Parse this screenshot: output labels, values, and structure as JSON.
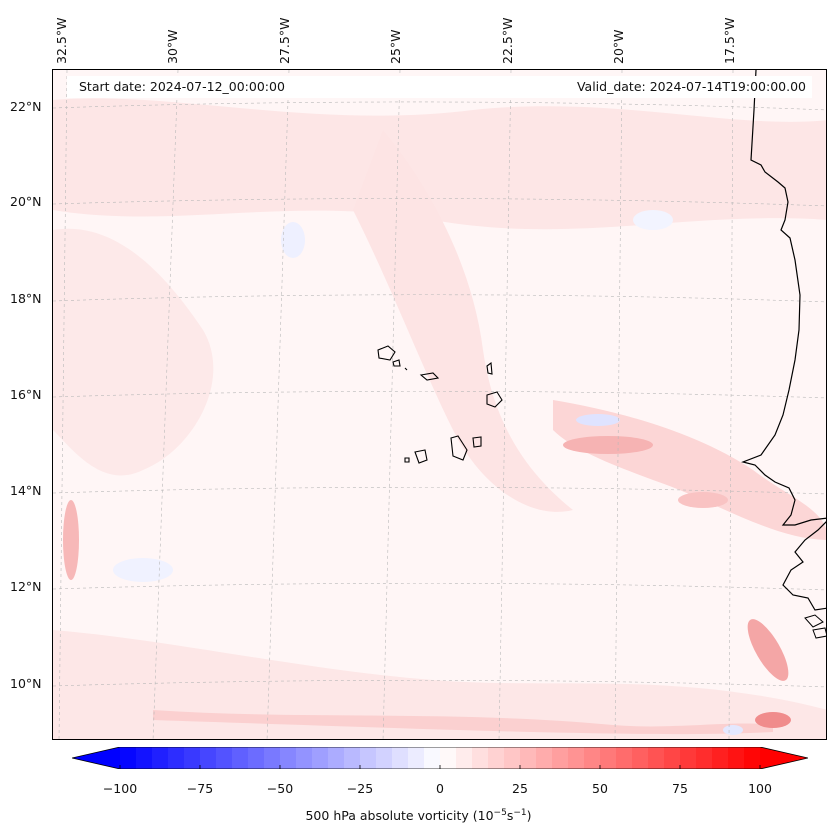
{
  "map": {
    "start_date": "Start date: 2024-07-12_00:00:00",
    "valid_date": "Valid_date: 2024-07-14T19:00:00.00",
    "lon_labels": [
      "32.5°W",
      "30°W",
      "27.5°W",
      "25°W",
      "22.5°W",
      "20°W",
      "17.5°W"
    ],
    "lat_labels": [
      "22°N",
      "20°N",
      "18°N",
      "16°N",
      "14°N",
      "12°N",
      "10°N"
    ],
    "region": "Cape Verde Islands and West African coast",
    "colors": {
      "coast": "#000000",
      "grid": "#b0b0b0",
      "light_red": "#fde3e3",
      "mid_red": "#f9c8c8",
      "strong_red": "#f08c8c",
      "light_blue": "#eef0ff"
    }
  },
  "colorbar": {
    "ticks": [
      "−100",
      "−75",
      "−50",
      "−25",
      "0",
      "25",
      "50",
      "75",
      "100"
    ],
    "tick_values": [
      -100,
      -75,
      -50,
      -25,
      0,
      25,
      50,
      75,
      100
    ],
    "min": -100,
    "max": 100,
    "levels": 41,
    "label": "500 hPa absolute vorticity (10",
    "label_exp1": "−5",
    "label_mid": "s",
    "label_exp2": "−1",
    "label_end": ")",
    "neg_color": "#0000ff",
    "pos_color": "#ff0000"
  }
}
